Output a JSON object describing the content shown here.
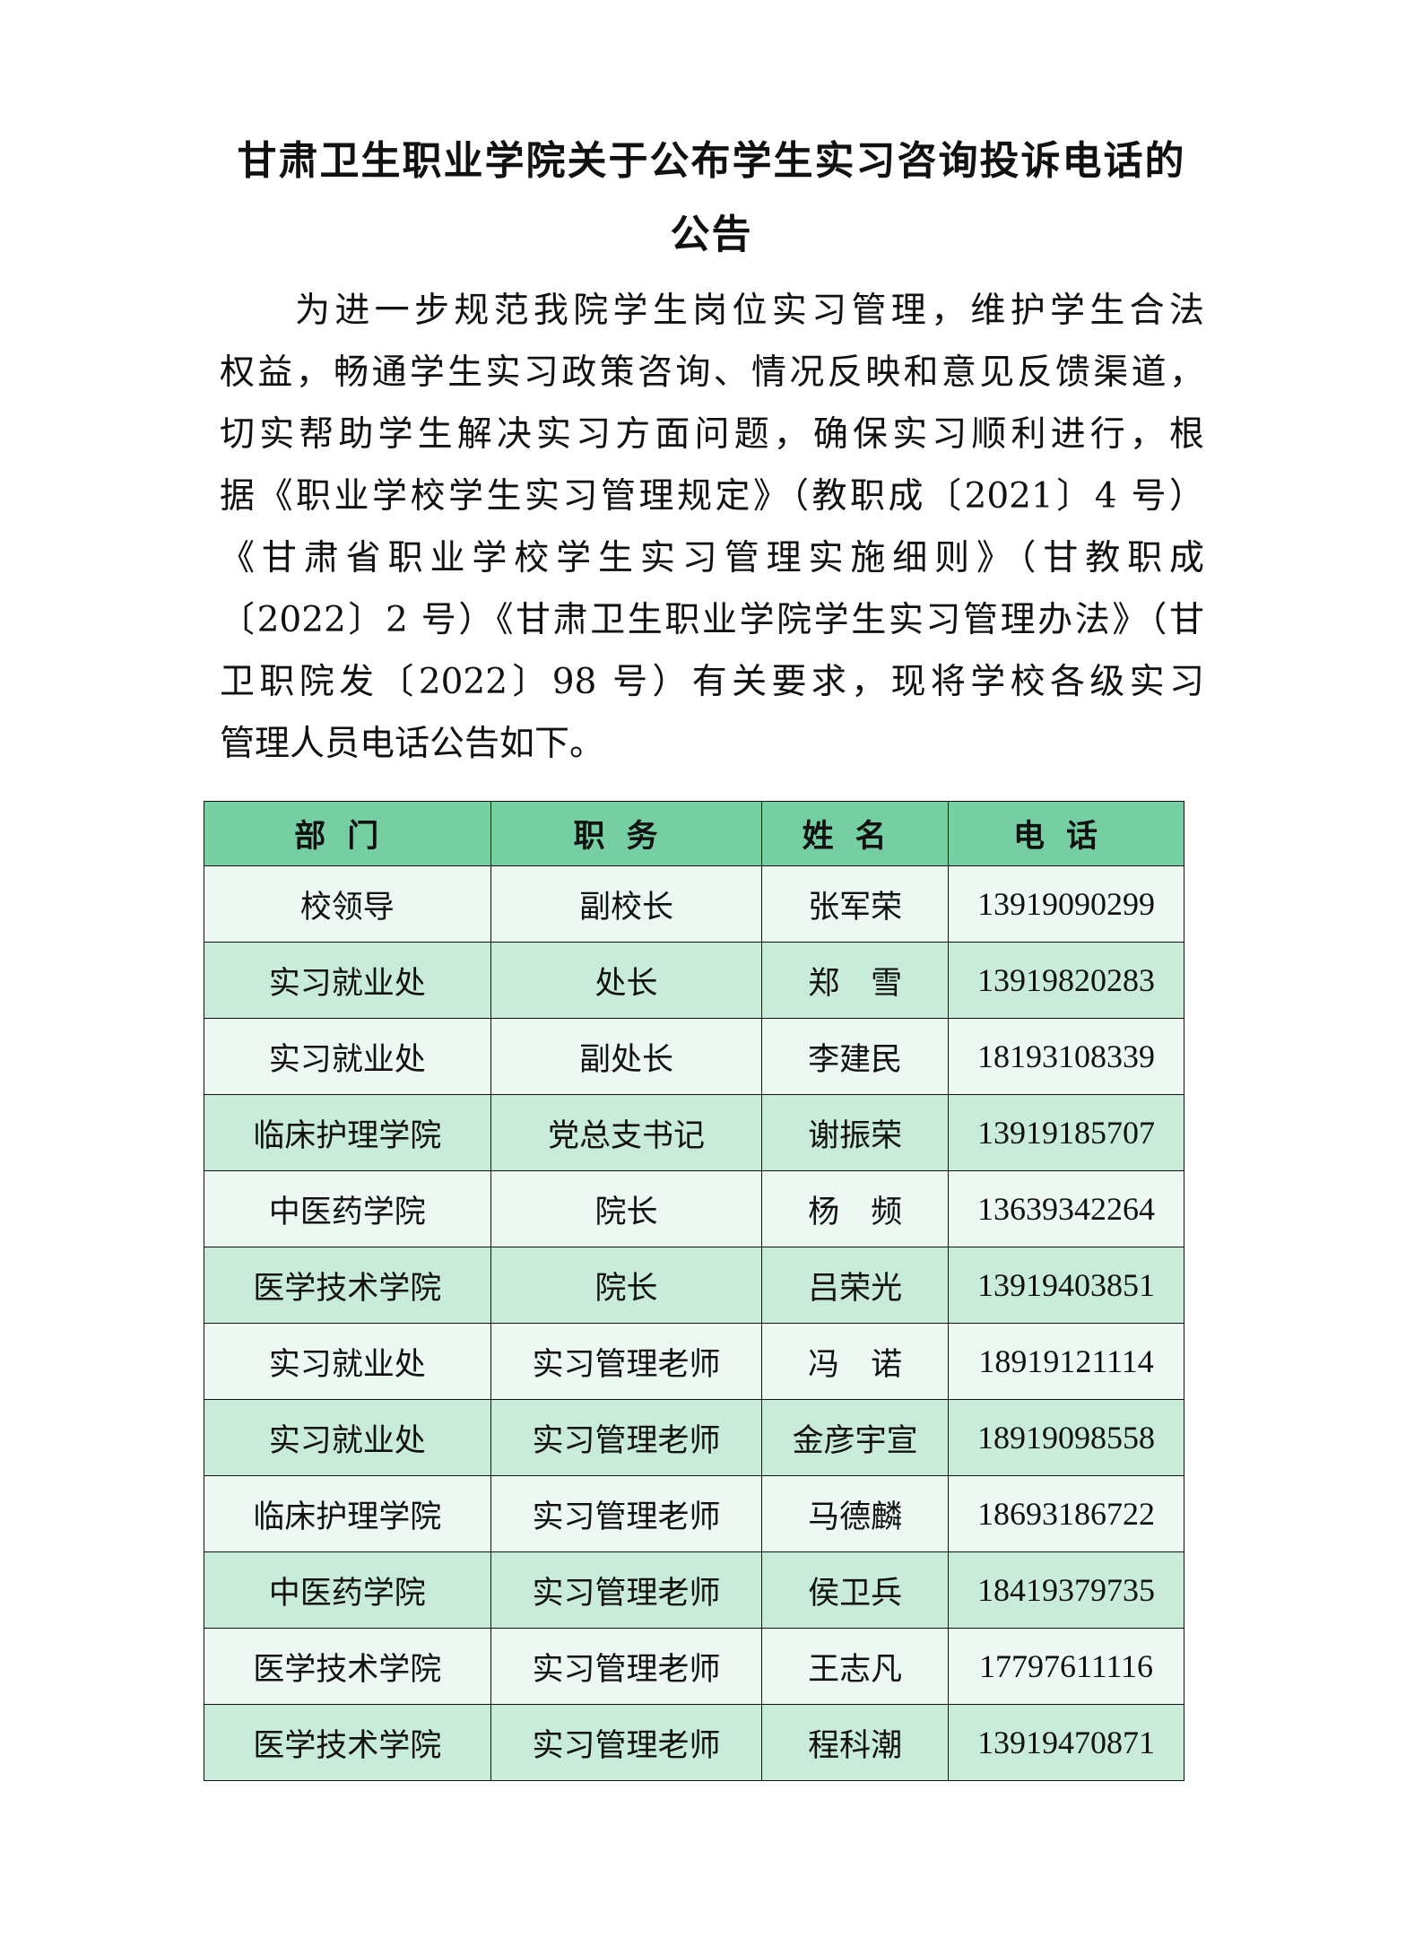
{
  "title": {
    "line1": "甘肃卫生职业学院关于公布学生实习咨询投诉电话的",
    "line2": "公告"
  },
  "body": {
    "lines": [
      "为进一步规范我院学生岗位实习管理，维护学生合法",
      "权益，畅通学生实习政策咨询、情况反映和意见反馈渠道，",
      "切实帮助学生解决实习方面问题，确保实习顺利进行，根",
      "据《职业学校学生实习管理规定》（教职成〔2021〕4 号）",
      "《甘肃省职业学校学生实习管理实施细则》（甘教职成",
      "〔2022〕2 号）《甘肃卫生职业学院学生实习管理办法》（甘",
      "卫职院发〔2022〕98 号）有关要求，现将学校各级实习",
      "管理人员电话公告如下。"
    ]
  },
  "table": {
    "headers": [
      "部门",
      "职务",
      "姓名",
      "电话"
    ],
    "rows": [
      [
        "校领导",
        "副校长",
        "张军荣",
        "13919090299"
      ],
      [
        "实习就业处",
        "处长",
        "郑　雪",
        "13919820283"
      ],
      [
        "实习就业处",
        "副处长",
        "李建民",
        "18193108339"
      ],
      [
        "临床护理学院",
        "党总支书记",
        "谢振荣",
        "13919185707"
      ],
      [
        "中医药学院",
        "院长",
        "杨　频",
        "13639342264"
      ],
      [
        "医学技术学院",
        "院长",
        "吕荣光",
        "13919403851"
      ],
      [
        "实习就业处",
        "实习管理老师",
        "冯　诺",
        "18919121114"
      ],
      [
        "实习就业处",
        "实习管理老师",
        "金彦宇宣",
        "18919098558"
      ],
      [
        "临床护理学院",
        "实习管理老师",
        "马德麟",
        "18693186722"
      ],
      [
        "中医药学院",
        "实习管理老师",
        "侯卫兵",
        "18419379735"
      ],
      [
        "医学技术学院",
        "实习管理老师",
        "王志凡",
        "17797611116"
      ],
      [
        "医学技术学院",
        "实习管理老师",
        "程科潮",
        "13919470871"
      ]
    ]
  },
  "colors": {
    "header_bg": "#76cfa3",
    "row_light": "#eef8f2",
    "row_dark": "#c8ecd9"
  }
}
